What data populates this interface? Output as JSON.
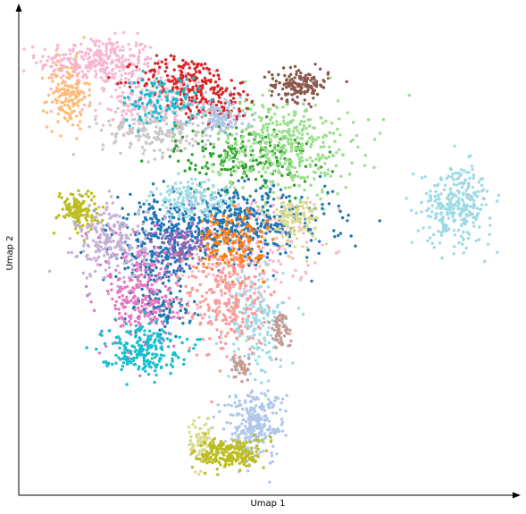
{
  "chart_data": {
    "type": "scatter",
    "title": "",
    "xlabel": "Umap 1",
    "ylabel": "Umap 2",
    "ticks": "none",
    "axes_style": "left and bottom spines with arrowheads",
    "grid": false,
    "legend": "none",
    "xlim": [
      0,
      100
    ],
    "ylim": [
      0,
      100
    ],
    "clusters": [
      {
        "color": "#f7b6d2",
        "center": [
          15,
          90
        ],
        "spread": [
          6,
          2.5
        ],
        "n": 300
      },
      {
        "color": "#f7b6d2",
        "center": [
          26,
          82
        ],
        "spread": [
          6,
          3
        ],
        "n": 200
      },
      {
        "color": "#f7b6d2",
        "center": [
          46,
          51
        ],
        "spread": [
          6,
          6
        ],
        "n": 250
      },
      {
        "color": "#ffbb78",
        "center": [
          9,
          83
        ],
        "spread": [
          2,
          3.5
        ],
        "n": 150
      },
      {
        "color": "#d62728",
        "center": [
          33,
          86
        ],
        "spread": [
          5,
          2.5
        ],
        "n": 180
      },
      {
        "color": "#d62728",
        "center": [
          40,
          81
        ],
        "spread": [
          4,
          2
        ],
        "n": 100
      },
      {
        "color": "#8c564b",
        "center": [
          56,
          85
        ],
        "spread": [
          3,
          1.7
        ],
        "n": 150
      },
      {
        "color": "#c7c7c7",
        "center": [
          28,
          76
        ],
        "spread": [
          6,
          3
        ],
        "n": 250
      },
      {
        "color": "#17becf",
        "center": [
          28,
          82
        ],
        "spread": [
          4,
          2.5
        ],
        "n": 120
      },
      {
        "color": "#2ca02c",
        "center": [
          45,
          70
        ],
        "spread": [
          7,
          3.5
        ],
        "n": 200
      },
      {
        "color": "#98df8a",
        "center": [
          53,
          72
        ],
        "spread": [
          7,
          5
        ],
        "n": 420
      },
      {
        "color": "#aec7e8",
        "center": [
          40,
          78
        ],
        "spread": [
          3,
          2
        ],
        "n": 100
      },
      {
        "color": "#1f77b4",
        "center": [
          42,
          56
        ],
        "spread": [
          10,
          3.5
        ],
        "n": 520
      },
      {
        "color": "#1f77b4",
        "center": [
          27,
          50
        ],
        "spread": [
          4,
          5
        ],
        "n": 250
      },
      {
        "color": "#1f77b4",
        "center": [
          29,
          38
        ],
        "spread": [
          2.5,
          2
        ],
        "n": 80
      },
      {
        "color": "#dbdb8d",
        "center": [
          55,
          57
        ],
        "spread": [
          2.5,
          2.5
        ],
        "n": 120
      },
      {
        "color": "#bcbd22",
        "center": [
          11,
          59
        ],
        "spread": [
          2,
          2
        ],
        "n": 120
      },
      {
        "color": "#c5b0d5",
        "center": [
          18,
          52
        ],
        "spread": [
          3.5,
          4
        ],
        "n": 230
      },
      {
        "color": "#9edae5",
        "center": [
          34,
          61
        ],
        "spread": [
          4,
          2
        ],
        "n": 150
      },
      {
        "color": "#9edae5",
        "center": [
          47,
          35
        ],
        "spread": [
          3,
          6
        ],
        "n": 200
      },
      {
        "color": "#9edae5",
        "center": [
          88,
          60
        ],
        "spread": [
          3.5,
          4
        ],
        "n": 300
      },
      {
        "color": "#ff7f0e",
        "center": [
          42,
          52
        ],
        "spread": [
          3.5,
          3
        ],
        "n": 180
      },
      {
        "color": "#9467bd",
        "center": [
          32,
          51
        ],
        "spread": [
          3,
          2.5
        ],
        "n": 100
      },
      {
        "color": "#e377c2",
        "center": [
          24,
          41
        ],
        "spread": [
          3.5,
          6
        ],
        "n": 260
      },
      {
        "color": "#ff9896",
        "center": [
          41,
          40
        ],
        "spread": [
          4,
          6
        ],
        "n": 250
      },
      {
        "color": "#17becf",
        "center": [
          24,
          30
        ],
        "spread": [
          4,
          2.5
        ],
        "n": 220
      },
      {
        "color": "#c49c94",
        "center": [
          52,
          34
        ],
        "spread": [
          1,
          2
        ],
        "n": 60
      },
      {
        "color": "#c49c94",
        "center": [
          44,
          26
        ],
        "spread": [
          1,
          1.5
        ],
        "n": 45
      },
      {
        "color": "#aec7e8",
        "center": [
          47,
          14
        ],
        "spread": [
          3,
          3.5
        ],
        "n": 260
      },
      {
        "color": "#dbdb8d",
        "center": [
          36,
          10
        ],
        "spread": [
          1.2,
          3
        ],
        "n": 80
      },
      {
        "color": "#bcbd22",
        "center": [
          42,
          8
        ],
        "spread": [
          3.5,
          1.6
        ],
        "n": 220
      }
    ]
  }
}
